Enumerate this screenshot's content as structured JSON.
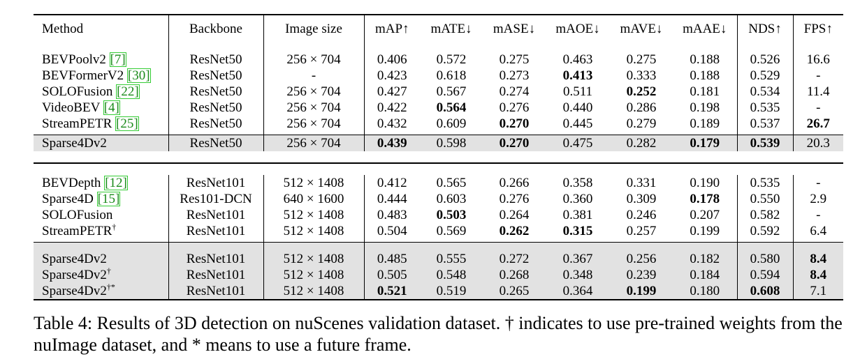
{
  "table": {
    "headers": [
      "Method",
      "Backbone",
      "Image size",
      "mAP↑",
      "mATE↓",
      "mASE↓",
      "mAOE↓",
      "mAVE↓",
      "mAAE↓",
      "NDS↑",
      "FPS↑"
    ],
    "group1": [
      {
        "method": "BEVPoolv2",
        "ref": "[7]",
        "sup": "",
        "backbone": "ResNet50",
        "size": "256 × 704",
        "mAP": "0.406",
        "mATE": "0.572",
        "mASE": "0.275",
        "mAOE": "0.463",
        "mAVE": "0.275",
        "mAAE": "0.188",
        "NDS": "0.526",
        "FPS": "16.6"
      },
      {
        "method": "BEVFormerV2",
        "ref": "[30]",
        "sup": "",
        "backbone": "ResNet50",
        "size": "-",
        "mAP": "0.423",
        "mATE": "0.618",
        "mASE": "0.273",
        "mAOE": "0.413",
        "mAVE": "0.333",
        "mAAE": "0.188",
        "NDS": "0.529",
        "FPS": "-"
      },
      {
        "method": "SOLOFusion",
        "ref": "[22]",
        "sup": "",
        "backbone": "ResNet50",
        "size": "256 × 704",
        "mAP": "0.427",
        "mATE": "0.567",
        "mASE": "0.274",
        "mAOE": "0.511",
        "mAVE": "0.252",
        "mAAE": "0.181",
        "NDS": "0.534",
        "FPS": "11.4"
      },
      {
        "method": "VideoBEV",
        "ref": "[4]",
        "sup": "",
        "backbone": "ResNet50",
        "size": "256 × 704",
        "mAP": "0.422",
        "mATE": "0.564",
        "mASE": "0.276",
        "mAOE": "0.440",
        "mAVE": "0.286",
        "mAAE": "0.198",
        "NDS": "0.535",
        "FPS": "-"
      },
      {
        "method": "StreamPETR",
        "ref": "[25]",
        "sup": "",
        "backbone": "ResNet50",
        "size": "256 × 704",
        "mAP": "0.432",
        "mATE": "0.609",
        "mASE": "0.270",
        "mAOE": "0.445",
        "mAVE": "0.279",
        "mAAE": "0.189",
        "NDS": "0.537",
        "FPS": "26.7"
      },
      {
        "method": "Sparse4Dv2",
        "ref": "",
        "sup": "",
        "backbone": "ResNet50",
        "size": "256 × 704",
        "mAP": "0.439",
        "mATE": "0.598",
        "mASE": "0.270",
        "mAOE": "0.475",
        "mAVE": "0.282",
        "mAAE": "0.179",
        "NDS": "0.539",
        "FPS": "20.3"
      }
    ],
    "group2": [
      {
        "method": "BEVDepth",
        "ref": "[12]",
        "sup": "",
        "backbone": "ResNet101",
        "size": "512 × 1408",
        "mAP": "0.412",
        "mATE": "0.565",
        "mASE": "0.266",
        "mAOE": "0.358",
        "mAVE": "0.331",
        "mAAE": "0.190",
        "NDS": "0.535",
        "FPS": "-"
      },
      {
        "method": "Sparse4D",
        "ref": "[15]",
        "sup": "",
        "backbone": "Res101-DCN",
        "size": "640 × 1600",
        "mAP": "0.444",
        "mATE": "0.603",
        "mASE": "0.276",
        "mAOE": "0.360",
        "mAVE": "0.309",
        "mAAE": "0.178",
        "NDS": "0.550",
        "FPS": "2.9"
      },
      {
        "method": "SOLOFusion",
        "ref": "",
        "sup": "",
        "backbone": "ResNet101",
        "size": "512 × 1408",
        "mAP": "0.483",
        "mATE": "0.503",
        "mASE": "0.264",
        "mAOE": "0.381",
        "mAVE": "0.246",
        "mAAE": "0.207",
        "NDS": "0.582",
        "FPS": "-"
      },
      {
        "method": "StreamPETR",
        "ref": "",
        "sup": "†",
        "backbone": "ResNet101",
        "size": "512 × 1408",
        "mAP": "0.504",
        "mATE": "0.569",
        "mASE": "0.262",
        "mAOE": "0.315",
        "mAVE": "0.257",
        "mAAE": "0.199",
        "NDS": "0.592",
        "FPS": "6.4"
      },
      {
        "method": "Sparse4Dv2",
        "ref": "",
        "sup": "",
        "backbone": "ResNet101",
        "size": "512 × 1408",
        "mAP": "0.485",
        "mATE": "0.555",
        "mASE": "0.272",
        "mAOE": "0.367",
        "mAVE": "0.256",
        "mAAE": "0.182",
        "NDS": "0.580",
        "FPS": "8.4"
      },
      {
        "method": "Sparse4Dv2",
        "ref": "",
        "sup": "†",
        "backbone": "ResNet101",
        "size": "512 × 1408",
        "mAP": "0.505",
        "mATE": "0.548",
        "mASE": "0.268",
        "mAOE": "0.348",
        "mAVE": "0.239",
        "mAAE": "0.184",
        "NDS": "0.594",
        "FPS": "8.4"
      },
      {
        "method": "Sparse4Dv2",
        "ref": "",
        "sup": "†*",
        "backbone": "ResNet101",
        "size": "512 × 1408",
        "mAP": "0.521",
        "mATE": "0.519",
        "mASE": "0.265",
        "mAOE": "0.364",
        "mAVE": "0.199",
        "mAAE": "0.180",
        "NDS": "0.608",
        "FPS": "7.1"
      }
    ]
  },
  "caption": "Table 4: Results of 3D detection on nuScenes validation dataset. † indicates to use pre-trained weights from the nuImage dataset, and * means to use a future frame."
}
